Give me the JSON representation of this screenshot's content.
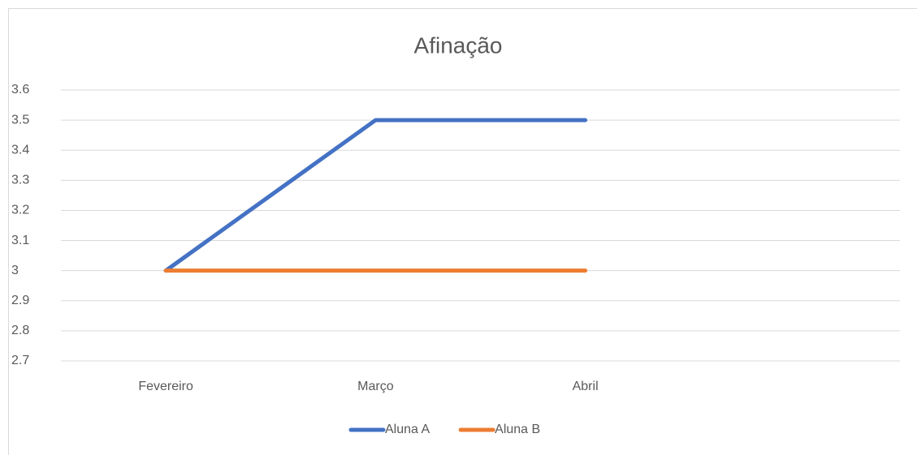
{
  "chart_data": {
    "type": "line",
    "title": "Afinação",
    "categories": [
      "Fevereiro",
      "Março",
      "Abril",
      null
    ],
    "series": [
      {
        "name": "Aluna A",
        "color": "#4472c4",
        "values": [
          3,
          3.5,
          3.5,
          null
        ]
      },
      {
        "name": "Aluna B",
        "color": "#ed7d31",
        "values": [
          3,
          3,
          3,
          null
        ]
      }
    ],
    "ylim": [
      2.7,
      3.6
    ],
    "yticks": [
      2.7,
      2.8,
      2.9,
      3,
      3.1,
      3.2,
      3.3,
      3.4,
      3.5,
      3.6
    ],
    "grid": true,
    "legend": "bottom"
  }
}
